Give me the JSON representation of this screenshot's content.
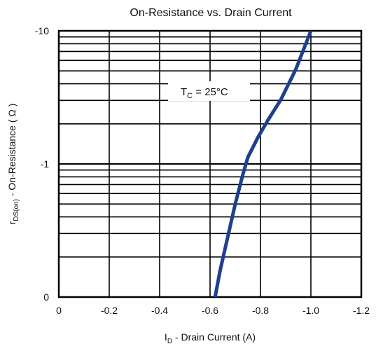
{
  "chart_data": {
    "type": "line",
    "title": "On-Resistance vs. Drain Current",
    "xlabel": {
      "main": "I",
      "sub": "D",
      "rest": " - Drain Current (A)"
    },
    "ylabel": {
      "main": "r",
      "sub": "DS(on)",
      "rest": " - On-Resistance ( Ω )"
    },
    "x_reversed": true,
    "xlim": [
      0,
      -1.2
    ],
    "x_ticks": [
      0,
      -0.2,
      -0.4,
      -0.6,
      -0.8,
      -1.0,
      -1.2
    ],
    "x_tick_labels": [
      "0",
      "-0.2",
      "-0.4",
      "-0.6",
      "-0.8",
      "-1.0",
      "-1.2"
    ],
    "y_scale": "log",
    "y_decades": 2,
    "y_tick_labels": [
      "0",
      "-1",
      "-10"
    ],
    "grid": true,
    "annotation": {
      "main": "T",
      "sub": "C",
      "rest": " = 25°C"
    },
    "series": [
      {
        "color": "#1f3f8f",
        "x": [
          -0.62,
          -0.64,
          -0.67,
          -0.7,
          -0.73,
          -0.75,
          -0.79,
          -0.83,
          -0.88,
          -0.94,
          -1.0
        ],
        "y_decade": [
          0.0,
          0.2,
          0.45,
          0.7,
          0.92,
          1.05,
          1.2,
          1.33,
          1.48,
          1.71,
          2.0
        ]
      }
    ]
  }
}
